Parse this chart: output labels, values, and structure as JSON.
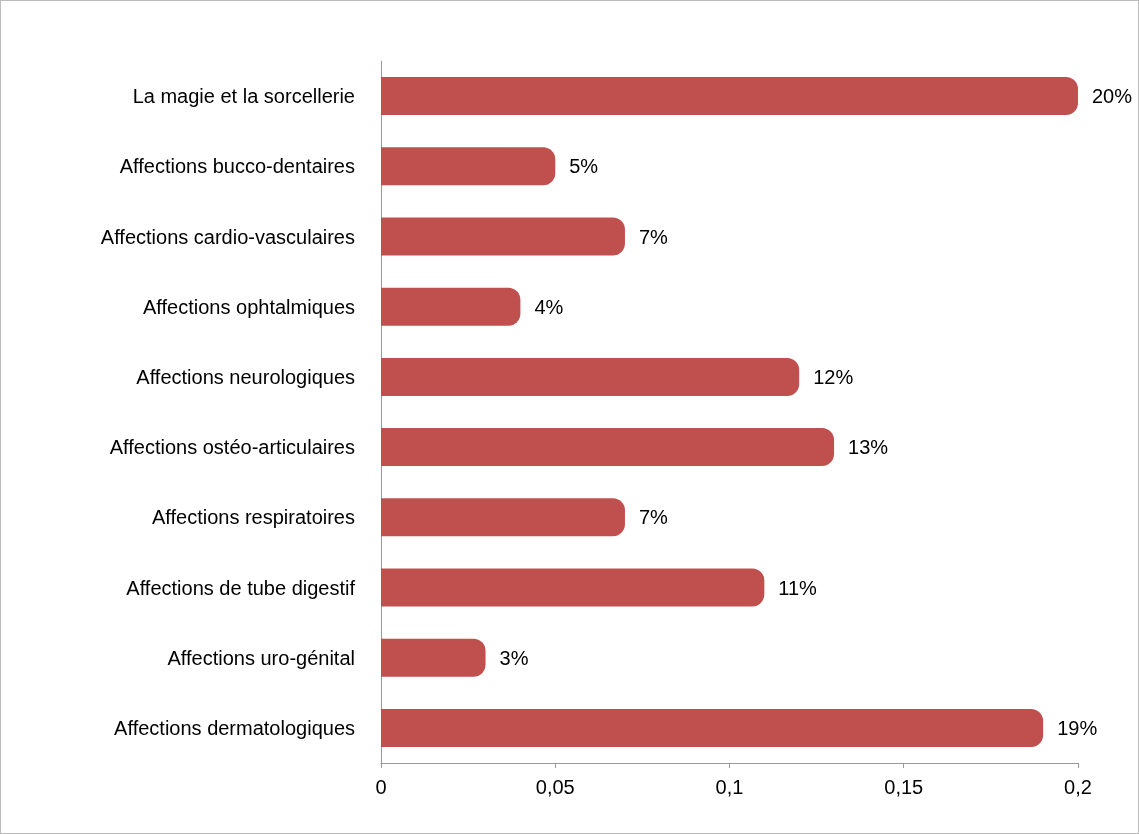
{
  "chart_data": {
    "type": "bar",
    "orientation": "horizontal",
    "categories": [
      "La magie et la sorcellerie",
      "Affections bucco-dentaires",
      "Affections cardio-vasculaires",
      "Affections ophtalmiques",
      "Affections neurologiques",
      "Affections ostéo-articulaires",
      "Affections respiratoires",
      "Affections de tube digestif",
      "Affections uro-génital",
      "Affections dermatologiques"
    ],
    "values": [
      0.2,
      0.05,
      0.07,
      0.04,
      0.12,
      0.13,
      0.07,
      0.11,
      0.03,
      0.19
    ],
    "value_labels": [
      "20%",
      "5%",
      "7%",
      "4%",
      "12%",
      "13%",
      "7%",
      "11%",
      "3%",
      "19%"
    ],
    "color": "#c0504d",
    "xlim": [
      0,
      0.2
    ],
    "xticks": [
      {
        "value": 0,
        "label": "0"
      },
      {
        "value": 0.05,
        "label": "0,05"
      },
      {
        "value": 0.1,
        "label": "0,1"
      },
      {
        "value": 0.15,
        "label": "0,15"
      },
      {
        "value": 0.2,
        "label": "0,2"
      }
    ],
    "grid": false
  }
}
